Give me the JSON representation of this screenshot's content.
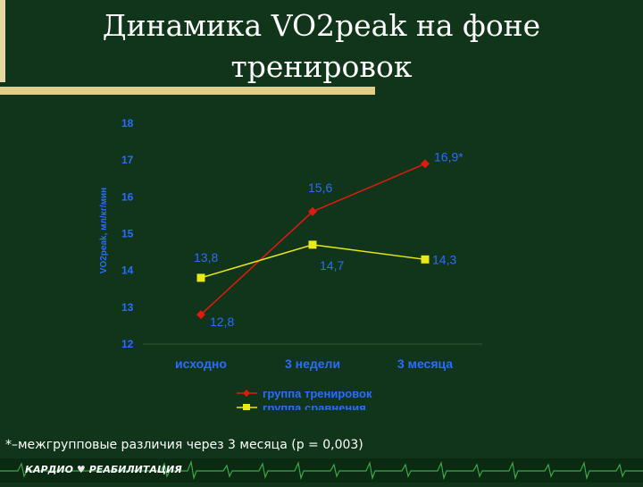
{
  "slide": {
    "title_line1": "Динамика VO2peak на фоне",
    "title_line2": "тренировок",
    "footnote": "*–межгрупповые различия через 3 месяца (р = 0,003)",
    "logo_left": "КАРДИО",
    "logo_right": "РЕАБИЛИТАЦИЯ"
  },
  "colors": {
    "background": "#11351a",
    "series_training": "#e01a10",
    "series_comparison": "#e8e81a",
    "axis_labels": "#2a6cff",
    "grid": "#2e5a36"
  },
  "chart_data": {
    "type": "line",
    "ylabel": "VO2peak, мл/кг/мин",
    "categories": [
      "исходно",
      "3 недели",
      "3 месяца"
    ],
    "ylim": [
      12,
      18
    ],
    "yticks": [
      12,
      13,
      14,
      15,
      16,
      17,
      18
    ],
    "series": [
      {
        "name": "группа тренировок",
        "values": [
          12.8,
          15.6,
          16.9
        ],
        "labels": [
          "12,8",
          "15,6",
          "16,9*"
        ],
        "marker": "diamond",
        "color": "#e01a10"
      },
      {
        "name": "группа сравнения",
        "values": [
          13.8,
          14.7,
          14.3
        ],
        "labels": [
          "13,8",
          "14,7",
          "14,3"
        ],
        "marker": "square",
        "color": "#e8e81a"
      }
    ],
    "legend": "bottom"
  }
}
